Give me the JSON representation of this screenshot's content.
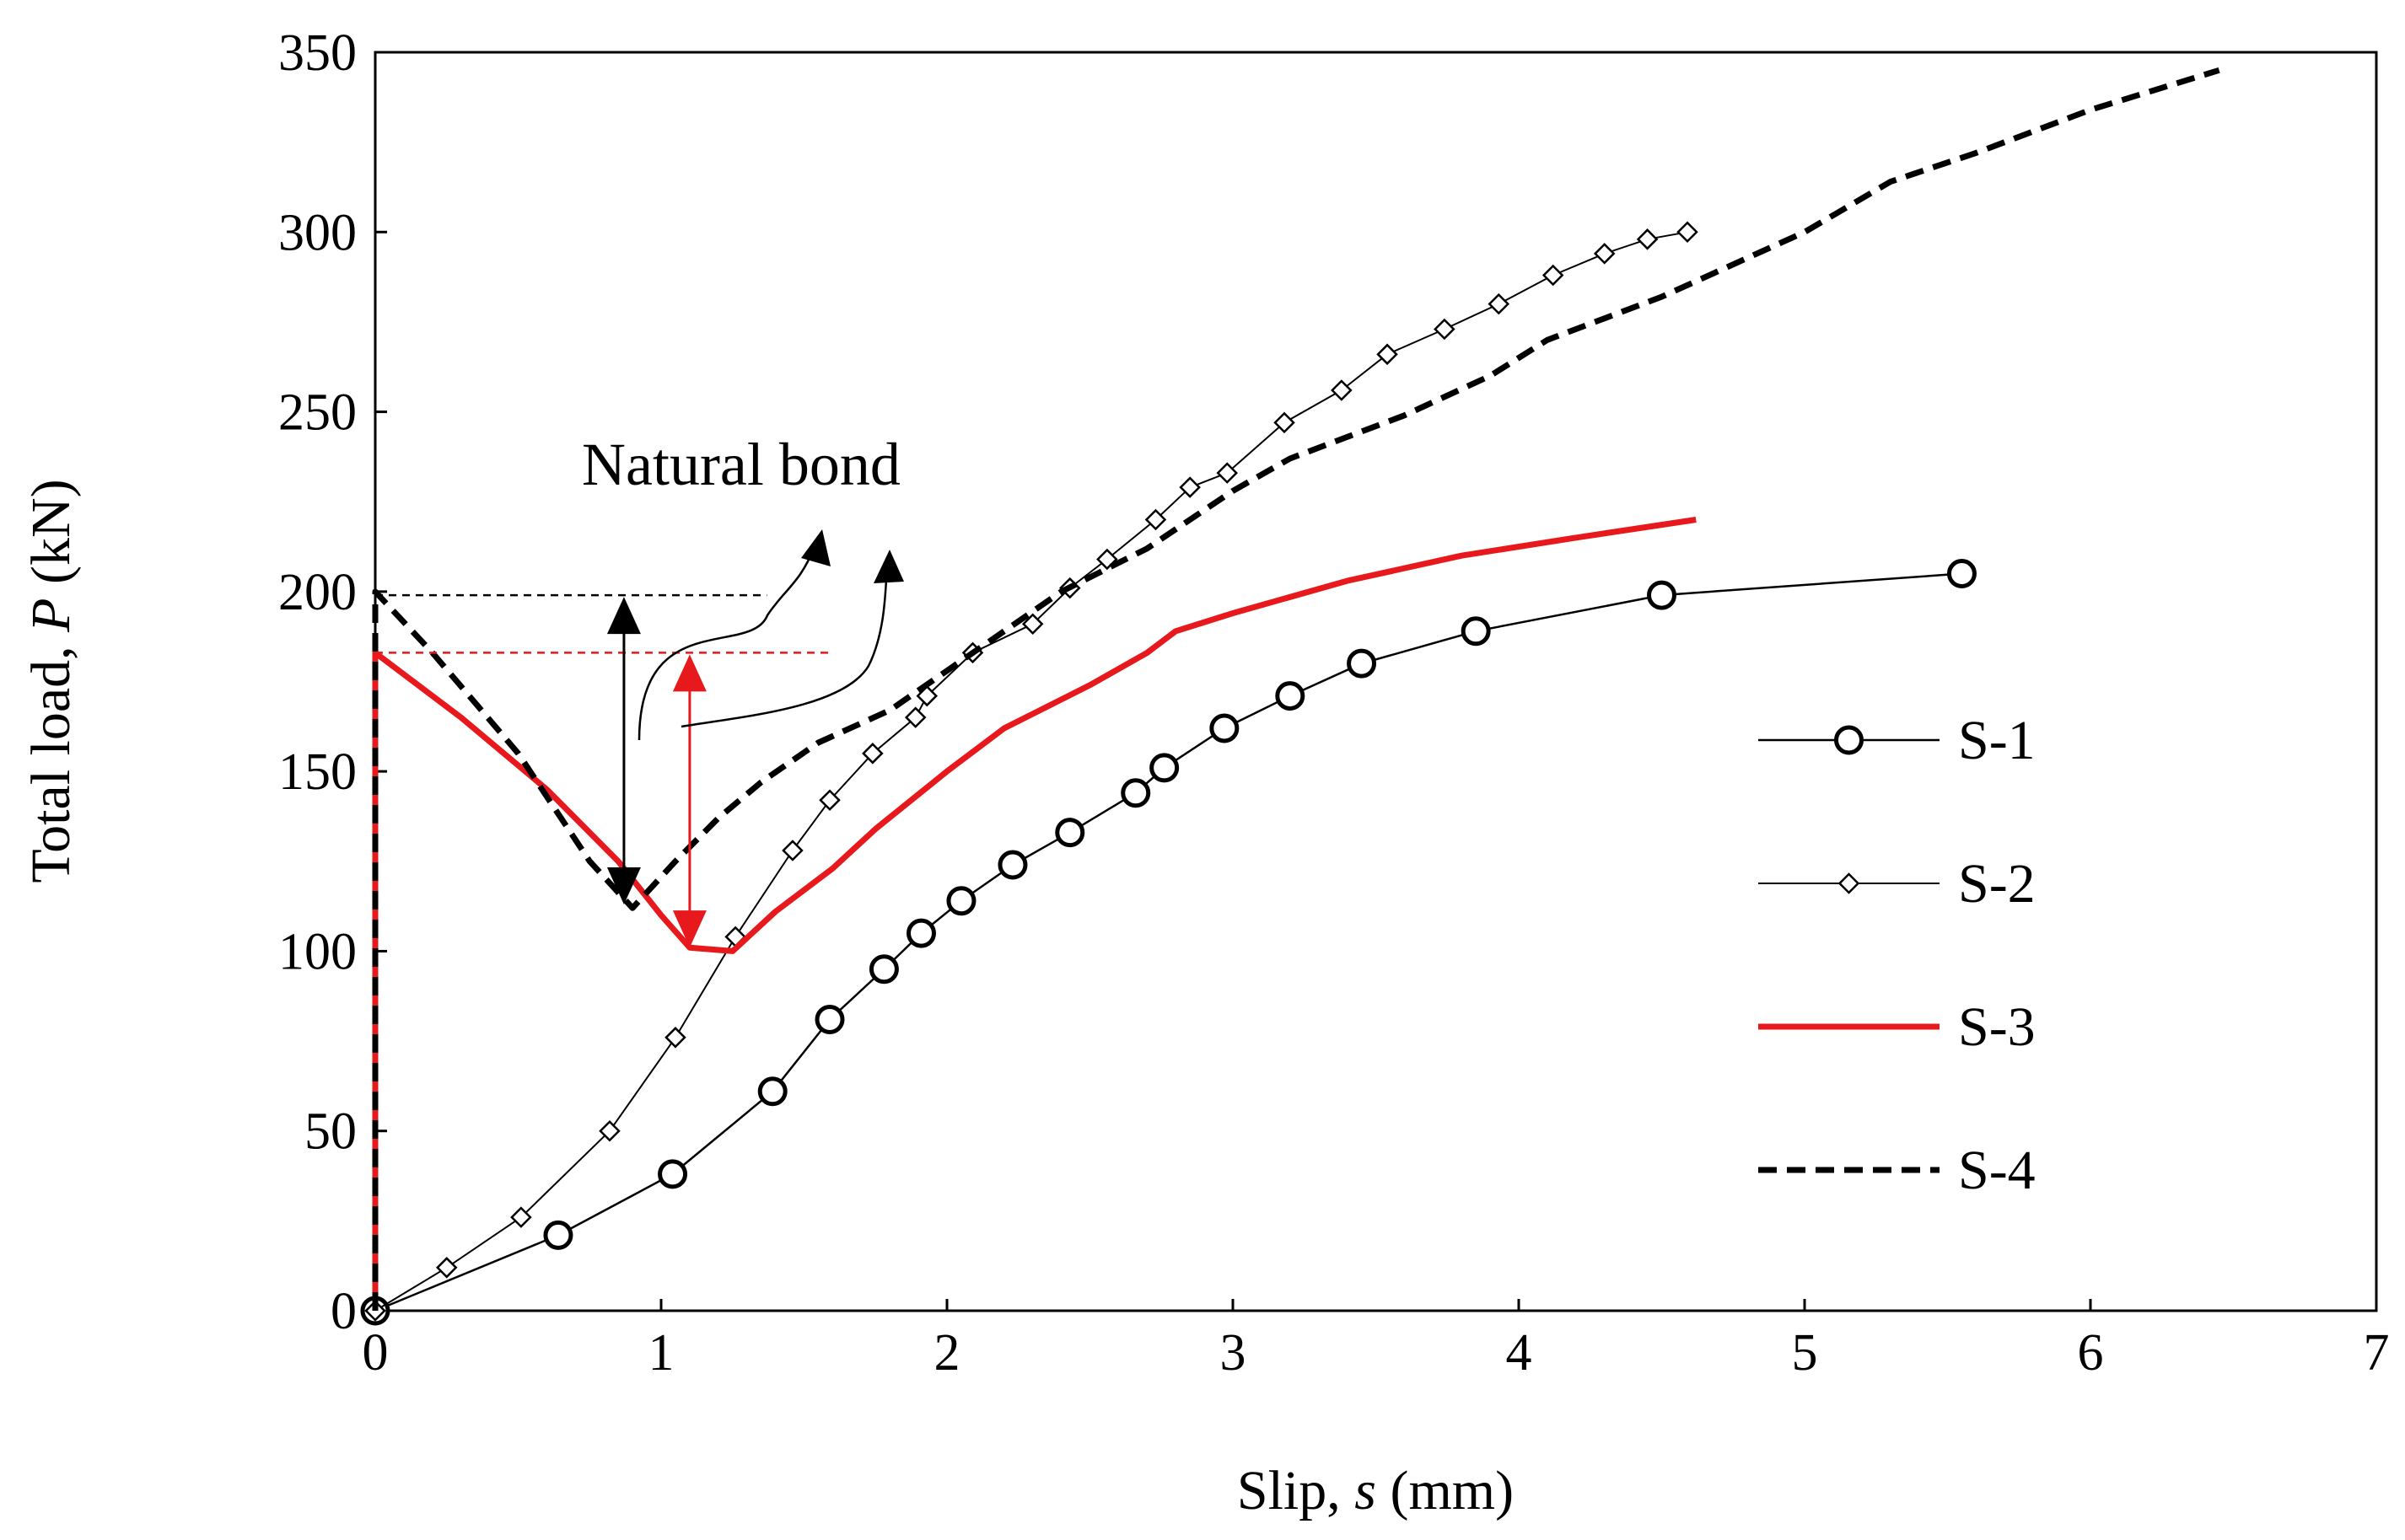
{
  "chart_data": {
    "type": "line",
    "title": "",
    "xlabel": "Slip, s (mm)",
    "xlabel_prefix": "Slip, ",
    "xlabel_var": "s",
    "xlabel_suffix": " (mm)",
    "ylabel": "Total load, P (kN)",
    "ylabel_prefix": "Total load, ",
    "ylabel_var": "P",
    "ylabel_suffix": " (kN)",
    "xlim": [
      0,
      7
    ],
    "ylim": [
      0,
      350
    ],
    "xticks": [
      0,
      1,
      2,
      3,
      4,
      5,
      6,
      7
    ],
    "yticks": [
      0,
      50,
      100,
      150,
      200,
      250,
      300,
      350
    ],
    "grid": false,
    "legend_position": "right",
    "annotation": {
      "text": "Natural bond",
      "reference_level_S4": 199,
      "reference_level_S3": 183
    },
    "series": [
      {
        "name": "S-1",
        "color": "#000000",
        "style": "solid",
        "marker": "circle",
        "x": [
          0,
          0.64,
          1.04,
          1.39,
          1.59,
          1.78,
          1.91,
          2.05,
          2.23,
          2.43,
          2.66,
          2.76,
          2.97,
          3.2,
          3.45,
          3.85,
          4.5,
          5.55
        ],
        "y": [
          0,
          21,
          38,
          61,
          81,
          95,
          105,
          114,
          124,
          133,
          144,
          151,
          162,
          171,
          180,
          189,
          199,
          205
        ]
      },
      {
        "name": "S-2",
        "color": "#000000",
        "style": "solid",
        "marker": "diamond",
        "x": [
          0,
          0.25,
          0.51,
          0.82,
          1.05,
          1.26,
          1.46,
          1.59,
          1.74,
          1.89,
          1.93,
          2.09,
          2.3,
          2.43,
          2.56,
          2.73,
          2.85,
          2.98,
          3.18,
          3.38,
          3.54,
          3.74,
          3.93,
          4.12,
          4.3,
          4.45,
          4.59
        ],
        "y": [
          0,
          12,
          26,
          50,
          76,
          104,
          128,
          142,
          155,
          165,
          171,
          183,
          191,
          201,
          209,
          220,
          229,
          233,
          247,
          256,
          266,
          273,
          280,
          288,
          294,
          298,
          300
        ]
      },
      {
        "name": "S-3",
        "color": "#e8191c",
        "style": "solid",
        "marker": "none",
        "x": [
          0,
          0,
          0.3,
          0.6,
          0.85,
          1.0,
          1.1,
          1.25,
          1.4,
          1.6,
          1.75,
          2.0,
          2.2,
          2.5,
          2.7,
          2.8,
          3.0,
          3.4,
          3.8,
          4.2,
          4.62
        ],
        "y": [
          0,
          183,
          165,
          145,
          125,
          110,
          101,
          100,
          111,
          123,
          134,
          150,
          162,
          174,
          183,
          189,
          194,
          203,
          210,
          215,
          220
        ]
      },
      {
        "name": "S-4",
        "color": "#000000",
        "style": "dashed",
        "marker": "none",
        "x": [
          0,
          0,
          0.2,
          0.5,
          0.75,
          0.9,
          1.05,
          1.2,
          1.35,
          1.55,
          1.8,
          2.0,
          2.2,
          2.4,
          2.7,
          3.0,
          3.2,
          3.6,
          3.9,
          4.1,
          4.5,
          5.0,
          5.3,
          5.6,
          6.0,
          6.45
        ],
        "y": [
          0,
          200,
          183,
          155,
          125,
          112,
          125,
          137,
          147,
          158,
          167,
          178,
          189,
          200,
          212,
          228,
          237,
          249,
          260,
          270,
          282,
          300,
          314,
          322,
          334,
          345
        ]
      }
    ]
  }
}
